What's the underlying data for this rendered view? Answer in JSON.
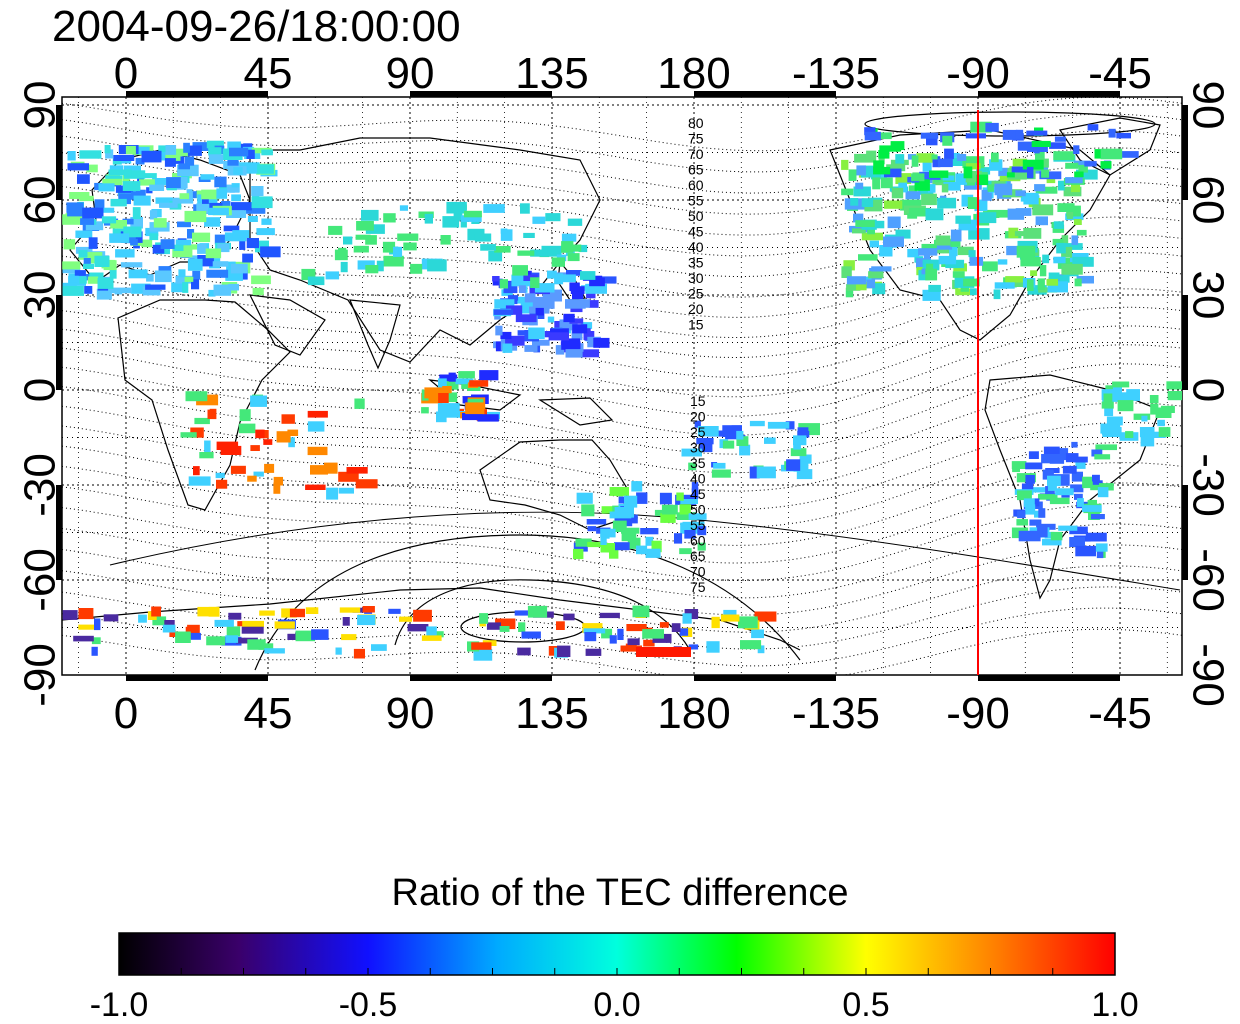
{
  "title": "2004-09-26/18:00:00",
  "map": {
    "top_lon_labels": [
      "0",
      "45",
      "90",
      "135",
      "180",
      "-135",
      "-90",
      "-45"
    ],
    "bottom_lon_labels": [
      "0",
      "45",
      "90",
      "135",
      "180",
      "-135",
      "-90",
      "-45"
    ],
    "left_lat_labels": [
      "90",
      "60",
      "30",
      "0",
      "-30",
      "-60",
      "-90"
    ],
    "right_lat_labels": [
      "90",
      "60",
      "30",
      "0",
      "-30",
      "-60",
      "-90"
    ],
    "contour_labels_north": [
      "80",
      "75",
      "70",
      "65",
      "60",
      "55",
      "50",
      "45",
      "40",
      "35",
      "30",
      "25",
      "20",
      "15"
    ],
    "contour_labels_south": [
      "15",
      "20",
      "25",
      "30",
      "35",
      "40",
      "45",
      "50",
      "55",
      "60",
      "65",
      "70",
      "75"
    ],
    "marker_meridian_lon": -90,
    "marker_color": "#ff0000"
  },
  "colorbar": {
    "title": "Ratio of the TEC difference",
    "tick_labels": [
      "-1.0",
      "-0.5",
      "0.0",
      "0.5",
      "1.0"
    ],
    "range": [
      -1.0,
      1.0
    ]
  }
}
